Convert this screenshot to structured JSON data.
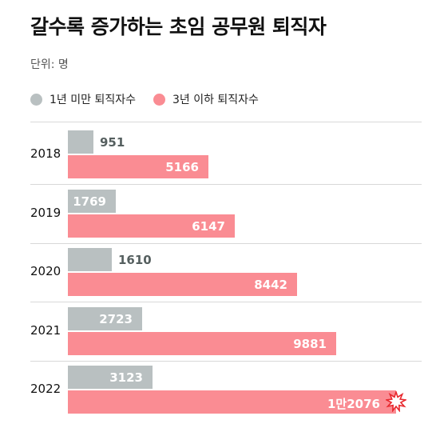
{
  "title": "갈수록 증가하는 초임 공무원 퇴직자",
  "unit": "단위: 명",
  "colors": {
    "gray": "#b9c0c1",
    "pink": "#fa8c93",
    "star": "#e8282e"
  },
  "chart_data": {
    "type": "bar",
    "orientation": "horizontal",
    "categories": [
      "2018",
      "2019",
      "2020",
      "2021",
      "2022"
    ],
    "series": [
      {
        "name": "1년 미만 퇴직자수",
        "values": [
          951,
          1769,
          1610,
          2723,
          3123
        ],
        "labels": [
          "951",
          "1769",
          "1610",
          "2723",
          "3123"
        ]
      },
      {
        "name": "3년 이하 퇴직자수",
        "values": [
          5166,
          6147,
          8442,
          9881,
          12076
        ],
        "labels": [
          "5166",
          "6147",
          "8442",
          "9881",
          "1만2076"
        ]
      }
    ],
    "legend": "top-left",
    "grid": false
  }
}
